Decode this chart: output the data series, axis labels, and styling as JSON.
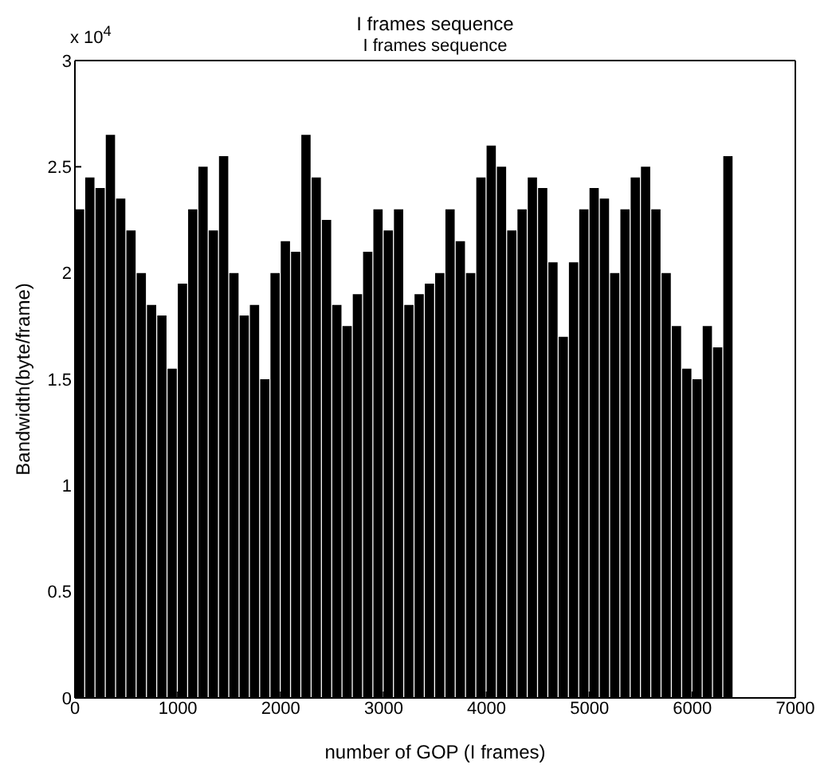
{
  "chart_data": {
    "type": "bar",
    "title": "I frames sequence",
    "subtitle": "I frames sequence",
    "xlabel": "number of GOP (I frames)",
    "ylabel": "Bandwidth(byte/frame)",
    "annotations": [
      "x 10$^{4}$"
    ],
    "x": [
      50,
      150,
      250,
      350,
      450,
      550,
      650,
      750,
      850,
      950,
      1050,
      1150,
      1250,
      1350,
      1450,
      1550,
      1650,
      1750,
      1850,
      1950,
      2050,
      2150,
      2250,
      2350,
      2450,
      2550,
      2650,
      2750,
      2850,
      2950,
      3050,
      3150,
      3250,
      3350,
      3450,
      3550,
      3650,
      3750,
      3850,
      3950,
      4050,
      4150,
      4250,
      4350,
      4450,
      4550,
      4650,
      4750,
      4850,
      4950,
      5050,
      5150,
      5250,
      5350,
      5450,
      5550,
      5650,
      5750,
      5850,
      5950,
      6050,
      6150,
      6250,
      6350
    ],
    "values": [
      2.3,
      2.45,
      2.4,
      2.65,
      2.35,
      2.2,
      2.0,
      1.85,
      1.8,
      1.55,
      1.95,
      2.3,
      2.5,
      2.2,
      2.55,
      2.0,
      1.8,
      1.85,
      1.5,
      2.0,
      2.15,
      2.1,
      2.65,
      2.45,
      2.25,
      1.85,
      1.75,
      1.9,
      2.1,
      2.3,
      2.2,
      2.3,
      1.85,
      1.9,
      1.95,
      2.0,
      2.3,
      2.15,
      2.0,
      2.45,
      2.6,
      2.5,
      2.2,
      2.3,
      2.45,
      2.4,
      2.05,
      1.7,
      2.05,
      2.3,
      2.4,
      2.35,
      2.0,
      2.3,
      2.45,
      2.5,
      2.3,
      2.0,
      1.75,
      1.55,
      1.5,
      1.75,
      1.65,
      2.55
    ],
    "color": "#000000",
    "xlim": [
      0,
      7000
    ],
    "xticks": [
      0,
      1000,
      2000,
      3000,
      4000,
      5000,
      6000,
      7000
    ],
    "ylim": [
      0,
      3
    ],
    "yticks": [
      0,
      0.5,
      1,
      1.5,
      2,
      2.5,
      3
    ]
  }
}
